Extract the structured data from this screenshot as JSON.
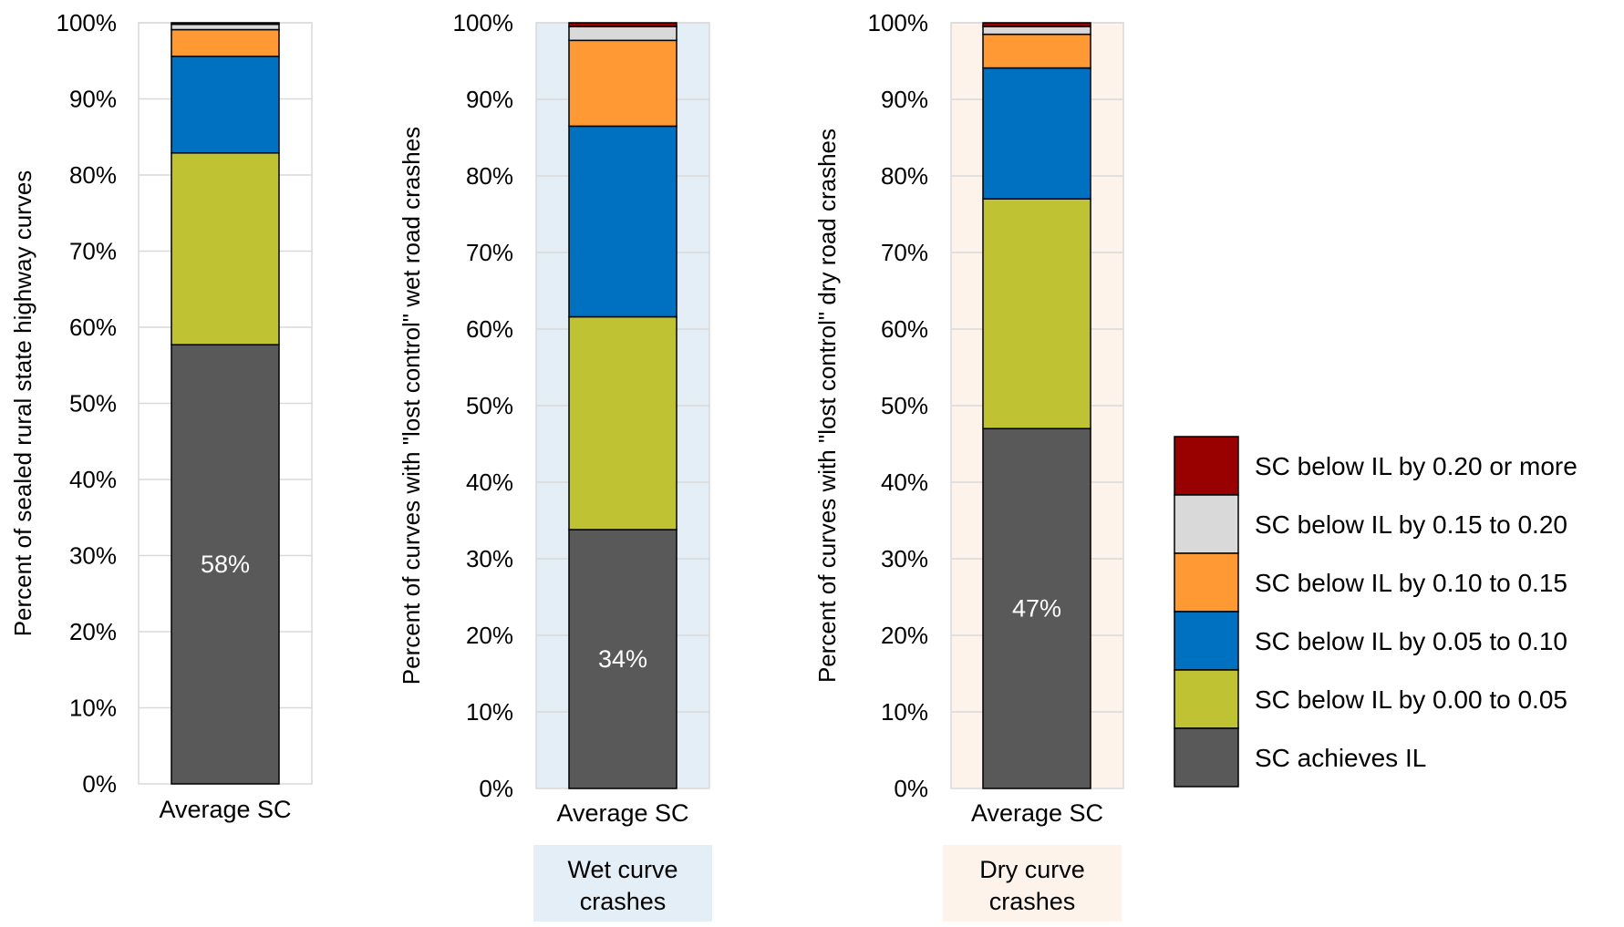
{
  "chart_data": {
    "type": "bar",
    "stacked": true,
    "legend": {
      "position": "right",
      "entries": [
        {
          "label": "SC below IL by 0.20 or more",
          "color": "#990000"
        },
        {
          "label": "SC below IL by 0.15 to 0.20",
          "color": "#d9d9d9"
        },
        {
          "label": "SC below IL by 0.10 to 0.15",
          "color": "#ff9933"
        },
        {
          "label": "SC below IL by 0.05 to 0.10",
          "color": "#0070c0"
        },
        {
          "label": "SC below IL by 0.00 to 0.05",
          "color": "#bfc233"
        },
        {
          "label": "SC achieves IL",
          "color": "#595959"
        }
      ]
    },
    "charts": [
      {
        "ylabel": "Percent of sealed rural state highway curves",
        "category": "Average SC",
        "plot_background": "#ffffff",
        "caption": "",
        "caption_background": "",
        "ylim": [
          0,
          100
        ],
        "yticks": [
          "0%",
          "10%",
          "20%",
          "30%",
          "40%",
          "50%",
          "60%",
          "70%",
          "80%",
          "90%",
          "100%"
        ],
        "data_label": "58%",
        "segments": [
          {
            "series": "SC achieves IL",
            "value": 57.7
          },
          {
            "series": "SC below IL by 0.00 to 0.05",
            "value": 25.2
          },
          {
            "series": "SC below IL by 0.05 to 0.10",
            "value": 12.7
          },
          {
            "series": "SC below IL by 0.10 to 0.15",
            "value": 3.5
          },
          {
            "series": "SC below IL by 0.15 to 0.20",
            "value": 0.7
          },
          {
            "series": "SC below IL by 0.20 or more",
            "value": 0.2
          }
        ]
      },
      {
        "ylabel": "Percent of curves with \"lost control\" wet road crashes",
        "category": "Average SC",
        "plot_background": "#e4eef7",
        "caption": "Wet curve crashes",
        "caption_background": "#e4eef7",
        "ylim": [
          0,
          100
        ],
        "yticks": [
          "0%",
          "10%",
          "20%",
          "30%",
          "40%",
          "50%",
          "60%",
          "70%",
          "80%",
          "90%",
          "100%"
        ],
        "data_label": "34%",
        "segments": [
          {
            "series": "SC achieves IL",
            "value": 33.8
          },
          {
            "series": "SC below IL by 0.00 to 0.05",
            "value": 27.8
          },
          {
            "series": "SC below IL by 0.05 to 0.10",
            "value": 24.9
          },
          {
            "series": "SC below IL by 0.10 to 0.15",
            "value": 11.2
          },
          {
            "series": "SC below IL by 0.15 to 0.20",
            "value": 1.8
          },
          {
            "series": "SC below IL by 0.20 or more",
            "value": 0.5
          }
        ]
      },
      {
        "ylabel": "Percent of curves with \"lost control\" dry road crashes",
        "category": "Average SC",
        "plot_background": "#fdf3ea",
        "caption": "Dry curve crashes",
        "caption_background": "#fdf3ea",
        "ylim": [
          0,
          100
        ],
        "yticks": [
          "0%",
          "10%",
          "20%",
          "30%",
          "40%",
          "50%",
          "60%",
          "70%",
          "80%",
          "90%",
          "100%"
        ],
        "data_label": "47%",
        "segments": [
          {
            "series": "SC achieves IL",
            "value": 47.0
          },
          {
            "series": "SC below IL by 0.00 to 0.05",
            "value": 30.0
          },
          {
            "series": "SC below IL by 0.05 to 0.10",
            "value": 17.1
          },
          {
            "series": "SC below IL by 0.10 to 0.15",
            "value": 4.4
          },
          {
            "series": "SC below IL by 0.15 to 0.20",
            "value": 1.0
          },
          {
            "series": "SC below IL by 0.20 or more",
            "value": 0.5
          }
        ]
      }
    ]
  }
}
